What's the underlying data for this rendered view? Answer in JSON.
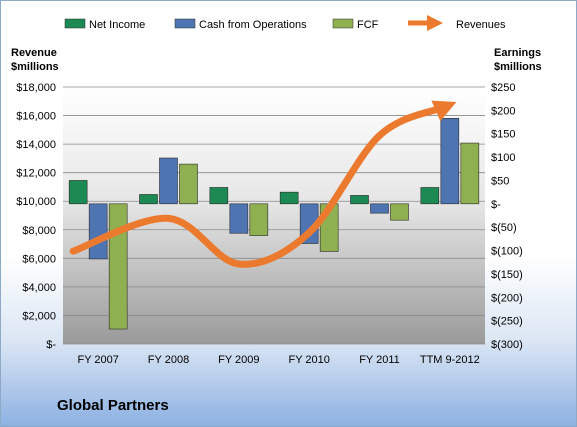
{
  "footer": {
    "company": "Global Partners"
  },
  "colors": {
    "net_income": "#1e8a53",
    "cash_ops": "#4f74b2",
    "fcf": "#8fb050",
    "revenues": "#ec7a2e"
  },
  "chart_data": {
    "type": "bar",
    "categories": [
      "FY 2007",
      "FY 2008",
      "FY 2009",
      "FY 2010",
      "FY 2011",
      "TTM 9-2012"
    ],
    "series": [
      {
        "name": "Net Income",
        "axis": "right",
        "values": [
          50,
          20,
          35,
          25,
          18,
          35
        ]
      },
      {
        "name": "Cash from Operations",
        "axis": "right",
        "values": [
          -118,
          98,
          -63,
          -85,
          -20,
          183
        ]
      },
      {
        "name": "FCF",
        "axis": "right",
        "values": [
          -268,
          85,
          -68,
          -102,
          -35,
          130
        ]
      },
      {
        "name": "Revenues",
        "type": "line",
        "axis": "left",
        "values": [
          6500,
          8800,
          5600,
          7800,
          14600,
          16600
        ]
      }
    ],
    "left_axis": {
      "label": "Revenue $millions",
      "min": 0,
      "max": 18000,
      "ticks": [
        "$-",
        "$2,000",
        "$4,000",
        "$6,000",
        "$8,000",
        "$10,000",
        "$12,000",
        "$14,000",
        "$16,000",
        "$18,000"
      ]
    },
    "right_axis": {
      "label": "Earnings $millions",
      "min": -300,
      "max": 250,
      "ticks": [
        "$(300)",
        "$(250)",
        "$(200)",
        "$(150)",
        "$(100)",
        "$(50)",
        "$-",
        "$50",
        "$100",
        "$150",
        "$200",
        "$250"
      ]
    },
    "legend": {
      "position": "top"
    },
    "grid": true
  }
}
